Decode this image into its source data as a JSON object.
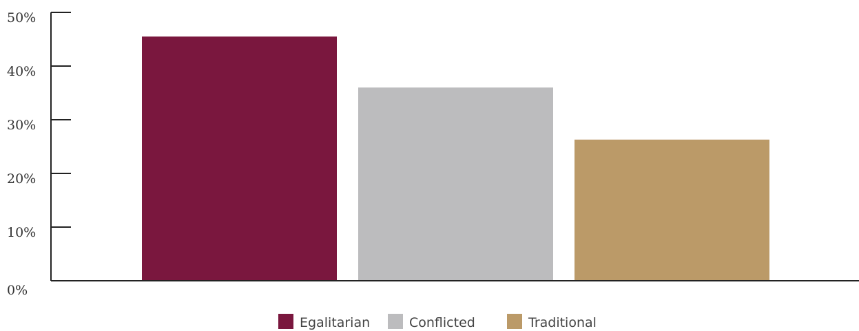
{
  "chart_data": {
    "type": "bar",
    "categories": [
      "Egalitarian",
      "Conflicted",
      "Traditional"
    ],
    "values": [
      45.5,
      36,
      26.3
    ],
    "ylim": [
      0,
      50
    ],
    "yticks": [
      0,
      10,
      20,
      30,
      40,
      50
    ],
    "ytick_labels": [
      "0%",
      "10%",
      "20%",
      "30%",
      "40%",
      "50%"
    ],
    "colors": [
      "#7a173e",
      "#bcbcbe",
      "#bb9a68"
    ],
    "legend": {
      "placement": "bottom-center",
      "entries": [
        "Egalitarian",
        "Conflicted",
        "Traditional"
      ]
    },
    "grid": false,
    "title": "",
    "xlabel": "",
    "ylabel": ""
  }
}
